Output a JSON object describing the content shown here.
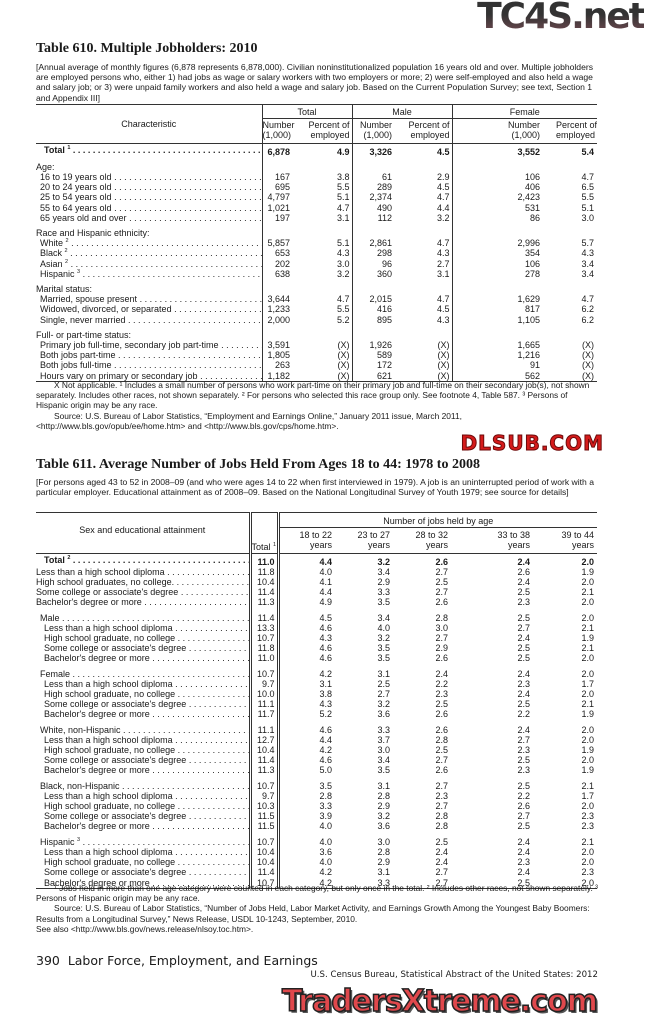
{
  "logos": {
    "top_right": "TC4S.net",
    "middle": "DLSUB.COM",
    "bottom": "TradersXtreme.com"
  },
  "table610": {
    "title": "Table 610. Multiple Jobholders: 2010",
    "intro": "[Annual average of monthly figures (6,878 represents 6,878,000). Civilian noninstitutionalized population 16 years old and over. Multiple jobholders are employed persons who, either 1) had jobs as wage or salary workers with two employers or more; 2) were self-employed and also held a wage and salary job; or 3) were unpaid family workers and also held a wage and salary job. Based on the Current Population Survey; see text, Section 1 and Appendix III]",
    "header": {
      "characteristic": "Characteristic",
      "groups": [
        "Total",
        "Male",
        "Female"
      ],
      "number": "Number",
      "number_unit": "(1,000)",
      "percent": "Percent of",
      "percent_unit": "employed"
    },
    "rows": [
      {
        "type": "total",
        "label": "Total",
        "sup": "1",
        "values": [
          "6,878",
          "4.9",
          "3,326",
          "4.5",
          "3,552",
          "5.4"
        ]
      },
      {
        "type": "spacer"
      },
      {
        "type": "group",
        "label": "Age:"
      },
      {
        "type": "item",
        "label": "16 to 19 years old",
        "values": [
          "167",
          "3.8",
          "61",
          "2.9",
          "106",
          "4.7"
        ]
      },
      {
        "type": "item",
        "label": "20 to 24 years old",
        "values": [
          "695",
          "5.5",
          "289",
          "4.5",
          "406",
          "6.5"
        ]
      },
      {
        "type": "item",
        "label": "25 to 54 years old",
        "values": [
          "4,797",
          "5.1",
          "2,374",
          "4.7",
          "2,423",
          "5.5"
        ]
      },
      {
        "type": "item",
        "label": "55 to 64 years old",
        "values": [
          "1,021",
          "4.7",
          "490",
          "4.4",
          "531",
          "5.1"
        ]
      },
      {
        "type": "item",
        "label": "65 years old and over",
        "values": [
          "197",
          "3.1",
          "112",
          "3.2",
          "86",
          "3.0"
        ]
      },
      {
        "type": "spacer"
      },
      {
        "type": "group",
        "label": "Race and Hispanic ethnicity:"
      },
      {
        "type": "item",
        "label": "White",
        "sup": "2",
        "values": [
          "5,857",
          "5.1",
          "2,861",
          "4.7",
          "2,996",
          "5.7"
        ]
      },
      {
        "type": "item",
        "label": "Black",
        "sup": "2",
        "values": [
          "653",
          "4.3",
          "298",
          "4.3",
          "354",
          "4.3"
        ]
      },
      {
        "type": "item",
        "label": "Asian",
        "sup": "2",
        "values": [
          "202",
          "3.0",
          "96",
          "2.7",
          "106",
          "3.4"
        ]
      },
      {
        "type": "item",
        "label": "Hispanic",
        "sup": "3",
        "values": [
          "638",
          "3.2",
          "360",
          "3.1",
          "278",
          "3.4"
        ]
      },
      {
        "type": "spacer"
      },
      {
        "type": "group",
        "label": "Marital status:"
      },
      {
        "type": "item",
        "label": "Married, spouse present",
        "values": [
          "3,644",
          "4.7",
          "2,015",
          "4.7",
          "1,629",
          "4.7"
        ]
      },
      {
        "type": "item",
        "label": "Widowed, divorced, or separated",
        "values": [
          "1,233",
          "5.5",
          "416",
          "4.5",
          "817",
          "6.2"
        ]
      },
      {
        "type": "item",
        "label": "Single, never married",
        "values": [
          "2,000",
          "5.2",
          "895",
          "4.3",
          "1,105",
          "6.2"
        ]
      },
      {
        "type": "spacer"
      },
      {
        "type": "group",
        "label": "Full- or part-time status:"
      },
      {
        "type": "item",
        "label": "Primary job full-time, secondary job part-time",
        "values": [
          "3,591",
          "(X)",
          "1,926",
          "(X)",
          "1,665",
          "(X)"
        ]
      },
      {
        "type": "item",
        "label": "Both jobs part-time",
        "values": [
          "1,805",
          "(X)",
          "589",
          "(X)",
          "1,216",
          "(X)"
        ]
      },
      {
        "type": "item",
        "label": "Both jobs full-time",
        "values": [
          "263",
          "(X)",
          "172",
          "(X)",
          "91",
          "(X)"
        ]
      },
      {
        "type": "item",
        "label": "Hours vary on primary or secondary job",
        "values": [
          "1,182",
          "(X)",
          "621",
          "(X)",
          "562",
          "(X)"
        ]
      }
    ],
    "notes": [
      "X Not applicable. ¹ Includes a small number of persons who work part-time on their primary job and full-time on their secondary job(s), not shown separately. Includes other races, not shown separately. ² For persons who selected this race group only. See footnote 4, Table 587. ³ Persons of Hispanic origin may be any race.",
      "Source: U.S. Bureau of Labor Statistics, “Employment and Earnings Online,” January 2011 issue, March 2011, <http://www.bls.gov/opub/ee/home.htm> and <http://www.bls.gov/cps/home.htm>."
    ]
  },
  "table611": {
    "title": "Table 611. Average Number of Jobs Held From Ages 18 to 44: 1978 to 2008",
    "intro": "[For persons aged 43 to 52 in 2008–09 (and who were ages 14 to 22 when first interviewed in 1979). A job is an uninterrupted period of work with a particular employer. Educational attainment as of 2008–09. Based on the National Longitudinal Survey of Youth 1979; see source for details]",
    "header": {
      "characteristic": "Sex and educational attainment",
      "span": "Number of jobs held by age",
      "total": "Total",
      "total_sup": "1",
      "ages": [
        [
          "18 to 22",
          "years"
        ],
        [
          "23 to 27",
          "years"
        ],
        [
          "28 to 32",
          "years"
        ],
        [
          "33 to 38",
          "years"
        ],
        [
          "39 to 44",
          "years"
        ]
      ]
    },
    "rows": [
      {
        "type": "total",
        "label": "Total",
        "sup": "2",
        "values": [
          "11.0",
          "4.4",
          "3.2",
          "2.6",
          "2.4",
          "2.0"
        ]
      },
      {
        "type": "flat",
        "label": "Less than a high school diploma",
        "values": [
          "11.8",
          "4.0",
          "3.4",
          "2.7",
          "2.6",
          "1.9"
        ]
      },
      {
        "type": "flat",
        "label": "High school graduates, no college.",
        "values": [
          "10.4",
          "4.1",
          "2.9",
          "2.5",
          "2.4",
          "2.0"
        ]
      },
      {
        "type": "flat",
        "label": "Some college or associate's degree",
        "values": [
          "11.4",
          "4.4",
          "3.3",
          "2.7",
          "2.5",
          "2.1"
        ]
      },
      {
        "type": "flat",
        "label": "Bachelor's degree or more",
        "values": [
          "11.3",
          "4.9",
          "3.5",
          "2.6",
          "2.3",
          "2.0"
        ]
      },
      {
        "type": "spacer"
      },
      {
        "type": "group",
        "label": "Male",
        "values": [
          "11.4",
          "4.5",
          "3.4",
          "2.8",
          "2.5",
          "2.0"
        ]
      },
      {
        "type": "item",
        "label": "Less than a high school diploma",
        "values": [
          "13.3",
          "4.6",
          "4.0",
          "3.0",
          "2.7",
          "2.1"
        ]
      },
      {
        "type": "item",
        "label": "High school graduate, no college",
        "values": [
          "10.7",
          "4.3",
          "3.2",
          "2.7",
          "2.4",
          "1.9"
        ]
      },
      {
        "type": "item",
        "label": "Some college or associate's degree",
        "values": [
          "11.8",
          "4.6",
          "3.5",
          "2.9",
          "2.5",
          "2.1"
        ]
      },
      {
        "type": "item",
        "label": "Bachelor's degree or more",
        "values": [
          "11.0",
          "4.6",
          "3.5",
          "2.6",
          "2.5",
          "2.0"
        ]
      },
      {
        "type": "spacer"
      },
      {
        "type": "group",
        "label": "Female",
        "values": [
          "10.7",
          "4.2",
          "3.1",
          "2.4",
          "2.4",
          "2.0"
        ]
      },
      {
        "type": "item",
        "label": "Less than a high school diploma",
        "values": [
          "9.7",
          "3.1",
          "2.5",
          "2.2",
          "2.3",
          "1.7"
        ]
      },
      {
        "type": "item",
        "label": "High school graduate, no college",
        "values": [
          "10.0",
          "3.8",
          "2.7",
          "2.3",
          "2.4",
          "2.0"
        ]
      },
      {
        "type": "item",
        "label": "Some college or associate's degree",
        "values": [
          "11.1",
          "4.3",
          "3.2",
          "2.5",
          "2.5",
          "2.1"
        ]
      },
      {
        "type": "item",
        "label": "Bachelor's degree or more",
        "values": [
          "11.7",
          "5.2",
          "3.6",
          "2.6",
          "2.2",
          "1.9"
        ]
      },
      {
        "type": "spacer"
      },
      {
        "type": "group",
        "label": "White, non-Hispanic",
        "values": [
          "11.1",
          "4.6",
          "3.3",
          "2.6",
          "2.4",
          "2.0"
        ]
      },
      {
        "type": "item",
        "label": "Less than a high school diploma",
        "values": [
          "12.7",
          "4.4",
          "3.7",
          "2.8",
          "2.7",
          "2.0"
        ]
      },
      {
        "type": "item",
        "label": "High school graduate, no college",
        "values": [
          "10.4",
          "4.2",
          "3.0",
          "2.5",
          "2.3",
          "1.9"
        ]
      },
      {
        "type": "item",
        "label": "Some college or associate's degree",
        "values": [
          "11.4",
          "4.6",
          "3.4",
          "2.7",
          "2.5",
          "2.0"
        ]
      },
      {
        "type": "item",
        "label": "Bachelor's degree or more",
        "values": [
          "11.3",
          "5.0",
          "3.5",
          "2.6",
          "2.3",
          "1.9"
        ]
      },
      {
        "type": "spacer"
      },
      {
        "type": "group",
        "label": "Black, non-Hispanic",
        "values": [
          "10.7",
          "3.5",
          "3.1",
          "2.7",
          "2.5",
          "2.1"
        ]
      },
      {
        "type": "item",
        "label": "Less than a high school diploma",
        "values": [
          "9.7",
          "2.8",
          "2.8",
          "2.3",
          "2.2",
          "1.7"
        ]
      },
      {
        "type": "item",
        "label": "High school graduate, no college",
        "values": [
          "10.3",
          "3.3",
          "2.9",
          "2.7",
          "2.6",
          "2.0"
        ]
      },
      {
        "type": "item",
        "label": "Some college or associate's degree",
        "values": [
          "11.5",
          "3.9",
          "3.2",
          "2.8",
          "2.7",
          "2.3"
        ]
      },
      {
        "type": "item",
        "label": "Bachelor's degree or more",
        "values": [
          "11.5",
          "4.0",
          "3.6",
          "2.8",
          "2.5",
          "2.3"
        ]
      },
      {
        "type": "spacer"
      },
      {
        "type": "group",
        "label": "Hispanic",
        "sup": "3",
        "values": [
          "10.7",
          "4.0",
          "3.0",
          "2.5",
          "2.4",
          "2.1"
        ]
      },
      {
        "type": "item",
        "label": "Less than a high school diploma",
        "values": [
          "10.4",
          "3.6",
          "2.8",
          "2.4",
          "2.4",
          "2.0"
        ]
      },
      {
        "type": "item",
        "label": "High school graduate, no college",
        "values": [
          "10.4",
          "4.0",
          "2.9",
          "2.4",
          "2.3",
          "2.0"
        ]
      },
      {
        "type": "item",
        "label": "Some college or associate's degree",
        "values": [
          "11.4",
          "4.2",
          "3.1",
          "2.7",
          "2.4",
          "2.3"
        ]
      },
      {
        "type": "item",
        "label": "Bachelor's degree or more",
        "values": [
          "10.7",
          "4.2",
          "3.3",
          "2.7",
          "2.5",
          "2.0"
        ]
      }
    ],
    "notes": [
      "¹ Jobs held in more than one age category were counted in each category, but only once in the total. ² Includes other races, not shown separately. ³ Persons of Hispanic origin may be any race.",
      "Source: U.S. Bureau of Labor Statistics, “Number of Jobs Held, Labor Market Activity, and  Earnings Growth Among the Youngest Baby Boomers: Results from a  Longitudinal Survey,” News Release, USDL 10-1243, September, 2010.",
      "See also <http://www.bls.gov/news.release/nlsoy.toc.htm>."
    ]
  },
  "footer": {
    "page_number": "390",
    "section": "Labor Force, Employment, and Earnings",
    "publication": "U.S. Census Bureau, Statistical Abstract of the United States: 2012"
  }
}
